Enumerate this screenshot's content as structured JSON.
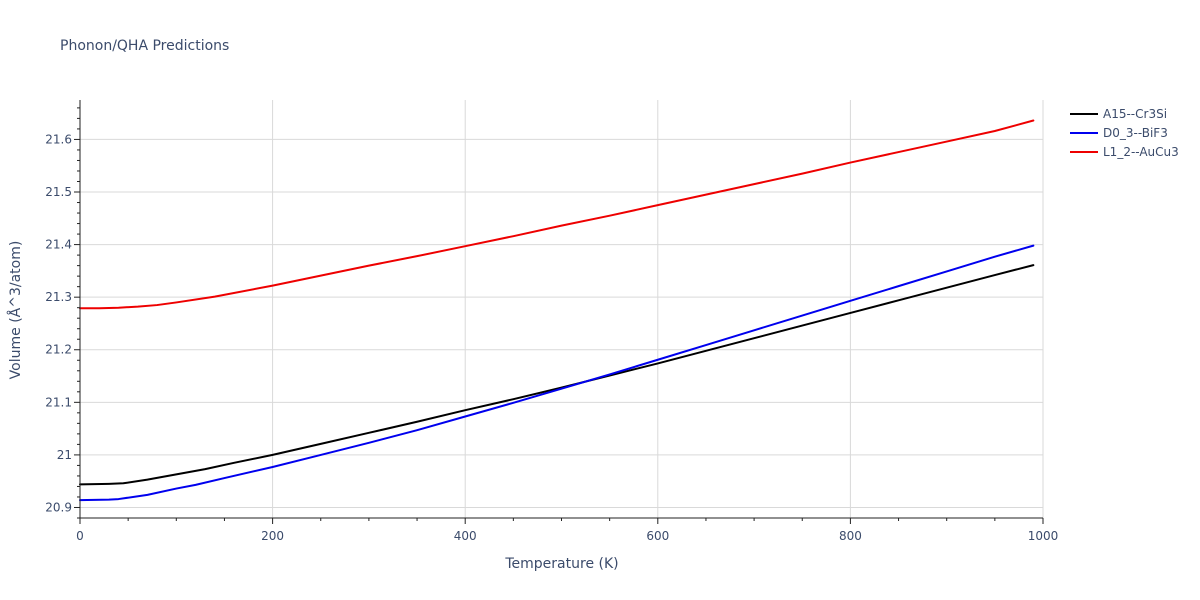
{
  "chart_data": {
    "type": "line",
    "title": "Phonon/QHA Predictions",
    "xlabel": "Temperature (K)",
    "ylabel": "Volume (Å^3/atom)",
    "xlim": [
      0,
      1000
    ],
    "ylim": [
      20.88,
      21.675
    ],
    "x_ticks": [
      0,
      200,
      400,
      600,
      800,
      1000
    ],
    "x_tick_labels": [
      "0",
      "200",
      "400",
      "600",
      "800",
      "1000"
    ],
    "y_ticks": [
      20.9,
      21.0,
      21.1,
      21.2,
      21.3,
      21.4,
      21.5,
      21.6
    ],
    "y_tick_labels": [
      "20.9",
      "21",
      "21.1",
      "21.2",
      "21.3",
      "21.4",
      "21.5",
      "21.6"
    ],
    "grid": true,
    "legend_position": "top-right",
    "series": [
      {
        "name": "A15--Cr3Si",
        "color": "#000000",
        "x": [
          0,
          30,
          45,
          70,
          100,
          130,
          160,
          200,
          250,
          300,
          350,
          400,
          450,
          500,
          550,
          600,
          650,
          700,
          750,
          800,
          850,
          900,
          950,
          990
        ],
        "y": [
          20.944,
          20.945,
          20.946,
          20.953,
          20.963,
          20.973,
          20.985,
          21.0,
          21.021,
          21.042,
          21.063,
          21.085,
          21.106,
          21.128,
          21.151,
          21.174,
          21.198,
          21.222,
          21.246,
          21.27,
          21.294,
          21.318,
          21.342,
          21.361
        ]
      },
      {
        "name": "D0_3--BiF3",
        "color": "#0000ee",
        "x": [
          0,
          30,
          40,
          70,
          100,
          120,
          150,
          200,
          250,
          300,
          350,
          400,
          450,
          500,
          550,
          600,
          650,
          700,
          750,
          800,
          850,
          900,
          950,
          990
        ],
        "y": [
          20.914,
          20.915,
          20.916,
          20.924,
          20.936,
          20.943,
          20.956,
          20.977,
          21.0,
          21.023,
          21.047,
          21.073,
          21.099,
          21.126,
          21.153,
          21.181,
          21.209,
          21.237,
          21.265,
          21.293,
          21.321,
          21.349,
          21.377,
          21.398
        ]
      },
      {
        "name": "L1_2--AuCu3",
        "color": "#ee0000",
        "x": [
          0,
          20,
          40,
          60,
          80,
          100,
          140,
          200,
          250,
          300,
          350,
          400,
          450,
          500,
          550,
          600,
          650,
          700,
          750,
          800,
          850,
          900,
          950,
          990
        ],
        "y": [
          21.279,
          21.279,
          21.28,
          21.282,
          21.285,
          21.29,
          21.301,
          21.322,
          21.341,
          21.36,
          21.378,
          21.397,
          21.416,
          21.436,
          21.455,
          21.475,
          21.495,
          21.515,
          21.535,
          21.556,
          21.576,
          21.596,
          21.616,
          21.636
        ]
      }
    ]
  }
}
